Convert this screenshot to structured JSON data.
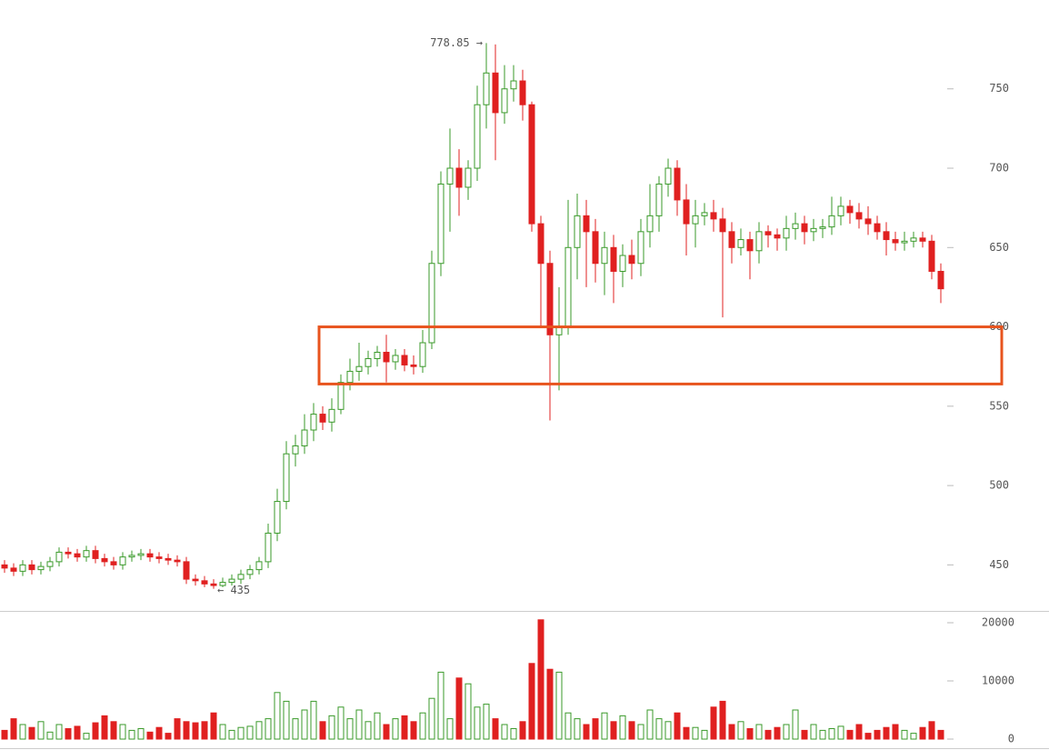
{
  "chart_data": {
    "type": "candlestick",
    "up_color": "#3a9a2a",
    "down_color": "#e02020",
    "ylim": [
      421,
      806
    ],
    "yticks": [
      450,
      500,
      550,
      600,
      650,
      700,
      750
    ],
    "y2lim": [
      -1875,
      21875
    ],
    "y2ticks": [
      0,
      10000,
      20000
    ],
    "high_label": "778.85 →",
    "low_label": "← 435",
    "highlight": {
      "range": [
        564,
        600
      ],
      "color": "#e8541e"
    },
    "open": [
      450,
      448,
      446,
      450,
      447,
      449,
      452,
      458,
      457,
      455,
      459,
      454,
      452,
      450,
      455,
      456,
      457,
      455,
      454,
      453,
      452,
      441,
      440,
      438,
      437,
      439,
      441,
      444,
      447,
      452,
      470,
      490,
      520,
      525,
      535,
      545,
      540,
      548,
      565,
      572,
      575,
      580,
      584,
      578,
      582,
      576,
      575,
      590,
      640,
      690,
      700,
      688,
      700,
      740,
      760,
      735,
      750,
      755,
      740,
      665,
      640,
      595,
      600,
      650,
      670,
      660,
      640,
      650,
      635,
      645,
      640,
      660,
      670,
      690,
      700,
      680,
      665,
      670,
      672,
      668,
      660,
      650,
      655,
      648,
      660,
      658,
      656,
      662,
      665,
      660,
      662,
      663,
      670,
      676,
      672,
      668,
      665,
      660,
      655,
      653,
      654,
      656,
      654,
      635
    ],
    "high": [
      453,
      451,
      453,
      453,
      452,
      455,
      461,
      461,
      460,
      462,
      462,
      457,
      455,
      458,
      459,
      460,
      460,
      458,
      457,
      456,
      455,
      444,
      443,
      441,
      442,
      444,
      447,
      450,
      455,
      476,
      498,
      528,
      532,
      545,
      552,
      550,
      555,
      570,
      580,
      590,
      585,
      588,
      595,
      586,
      586,
      582,
      598,
      648,
      698,
      725,
      712,
      705,
      752,
      778.85,
      778,
      765,
      765,
      762,
      742,
      670,
      648,
      625,
      680,
      684,
      680,
      668,
      660,
      658,
      652,
      655,
      668,
      690,
      695,
      706,
      705,
      690,
      680,
      678,
      680,
      675,
      666,
      662,
      660,
      666,
      664,
      662,
      670,
      672,
      670,
      668,
      668,
      682,
      682,
      680,
      678,
      676,
      670,
      666,
      660,
      660,
      660,
      660,
      658,
      640
    ],
    "low": [
      445,
      443,
      443,
      444,
      444,
      446,
      449,
      454,
      452,
      452,
      451,
      449,
      447,
      447,
      452,
      453,
      452,
      451,
      450,
      449,
      438,
      437,
      436,
      435,
      436,
      437,
      438,
      441,
      444,
      448,
      465,
      485,
      512,
      520,
      528,
      535,
      534,
      545,
      560,
      566,
      570,
      575,
      565,
      573,
      572,
      570,
      571,
      586,
      632,
      660,
      670,
      680,
      692,
      725,
      705,
      728,
      742,
      730,
      660,
      600,
      541,
      560,
      595,
      630,
      625,
      628,
      620,
      615,
      625,
      630,
      632,
      650,
      660,
      682,
      670,
      645,
      650,
      664,
      660,
      606,
      640,
      645,
      630,
      640,
      650,
      648,
      648,
      655,
      652,
      654,
      656,
      658,
      664,
      665,
      662,
      658,
      655,
      645,
      648,
      648,
      650,
      650,
      630,
      615
    ],
    "close": [
      448,
      446,
      450,
      447,
      449,
      452,
      458,
      457,
      455,
      459,
      454,
      452,
      450,
      455,
      456,
      457,
      455,
      454,
      453,
      452,
      441,
      440,
      438,
      437,
      439,
      441,
      444,
      447,
      452,
      470,
      490,
      520,
      525,
      535,
      545,
      540,
      548,
      565,
      572,
      575,
      580,
      584,
      578,
      582,
      576,
      575,
      590,
      640,
      690,
      700,
      688,
      700,
      740,
      760,
      735,
      750,
      755,
      740,
      665,
      640,
      595,
      600,
      650,
      670,
      660,
      640,
      650,
      635,
      645,
      640,
      660,
      670,
      690,
      700,
      680,
      665,
      670,
      672,
      668,
      660,
      650,
      655,
      648,
      660,
      658,
      656,
      662,
      665,
      660,
      662,
      663,
      670,
      676,
      672,
      668,
      665,
      660,
      655,
      653,
      654,
      656,
      654,
      635,
      624
    ],
    "volume": [
      1500,
      3500,
      2500,
      2000,
      3000,
      1200,
      2500,
      1800,
      2200,
      1000,
      2800,
      4000,
      3000,
      2500,
      1500,
      1800,
      1200,
      2000,
      1000,
      3500,
      3000,
      2800,
      3000,
      4500,
      2500,
      1500,
      2000,
      2200,
      3000,
      3500,
      8000,
      6500,
      3500,
      5000,
      6500,
      3000,
      4000,
      5500,
      3500,
      5000,
      3000,
      4500,
      2500,
      3500,
      4000,
      3000,
      4500,
      7000,
      11500,
      3500,
      10500,
      9500,
      5500,
      6000,
      3500,
      2500,
      1800,
      3000,
      13000,
      20500,
      12000,
      11500,
      4500,
      3500,
      2500,
      3500,
      4500,
      3000,
      4000,
      3000,
      2500,
      5000,
      3500,
      3000,
      4500,
      2000,
      2000,
      1500,
      5500,
      6500,
      2500,
      3000,
      1800,
      2500,
      1500,
      2000,
      2500,
      5000,
      1500,
      2500,
      1500,
      1800,
      2200,
      1500,
      2500,
      1000,
      1500,
      2000,
      2500,
      1500,
      1000,
      2000,
      3000,
      1500
    ]
  }
}
